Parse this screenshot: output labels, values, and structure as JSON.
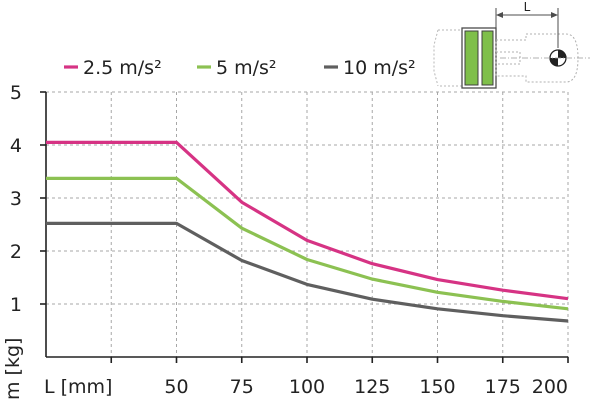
{
  "chart_data": {
    "type": "line",
    "xlabel": "L [mm]",
    "ylabel": "m [kg]",
    "x_ticks": [
      50,
      75,
      100,
      125,
      150,
      175,
      200
    ],
    "y_ticks": [
      1,
      2,
      3,
      4,
      5
    ],
    "xlim": [
      0,
      200
    ],
    "ylim": [
      0,
      5
    ],
    "grid": true,
    "legend_position": "top",
    "series": [
      {
        "name": "2.5 m/s²",
        "color": "#d63384",
        "points": [
          [
            0,
            4.05
          ],
          [
            50,
            4.05
          ],
          [
            75,
            2.92
          ],
          [
            100,
            2.2
          ],
          [
            125,
            1.76
          ],
          [
            150,
            1.46
          ],
          [
            175,
            1.26
          ],
          [
            200,
            1.1
          ]
        ]
      },
      {
        "name": "5 m/s²",
        "color": "#8cc152",
        "points": [
          [
            0,
            3.37
          ],
          [
            50,
            3.37
          ],
          [
            75,
            2.43
          ],
          [
            100,
            1.84
          ],
          [
            125,
            1.47
          ],
          [
            150,
            1.22
          ],
          [
            175,
            1.05
          ],
          [
            200,
            0.91
          ]
        ]
      },
      {
        "name": "10 m/s²",
        "color": "#5f5f5f",
        "points": [
          [
            0,
            2.52
          ],
          [
            50,
            2.52
          ],
          [
            75,
            1.82
          ],
          [
            100,
            1.37
          ],
          [
            125,
            1.09
          ],
          [
            150,
            0.91
          ],
          [
            175,
            0.78
          ],
          [
            200,
            0.68
          ]
        ]
      }
    ],
    "diagram": {
      "dimension_label": "L",
      "part_color": "#7fbf4a"
    }
  }
}
